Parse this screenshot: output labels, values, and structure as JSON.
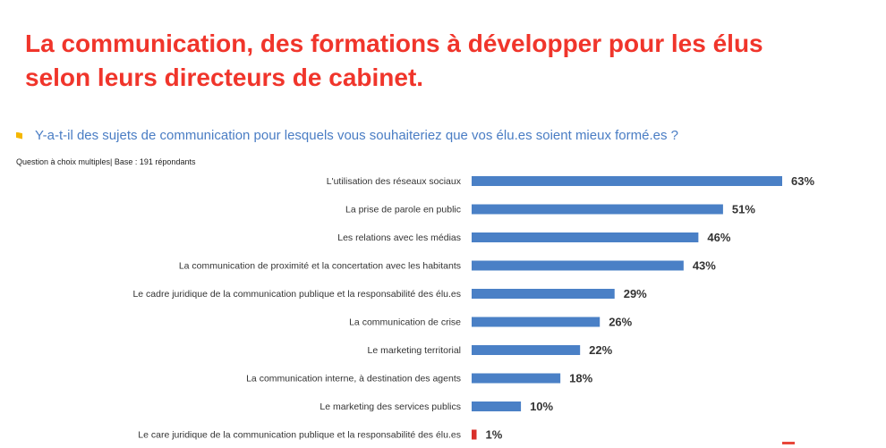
{
  "header": {
    "title_line1": "La communication, des formations à développer pour les élus",
    "title_line2": "selon leurs directeurs de cabinet."
  },
  "question": {
    "text": "Y-a-t-il des sujets de communication pour lesquels vous souhaiteriez que vos élu.es soient mieux formé.es ?",
    "note": "Question à choix multiples| Base : 191 répondants"
  },
  "chart_data": {
    "type": "bar",
    "orientation": "horizontal",
    "categories": [
      "L'utilisation des réseaux sociaux",
      "La prise de parole en public",
      "Les relations avec les médias",
      "La communication de proximité et la concertation avec les habitants",
      "Le cadre juridique de la communication publique et la responsabilité des élu.es",
      "La communication de crise",
      "Le marketing territorial",
      "La communication interne, à destination des agents",
      "Le marketing des services publics",
      "Le care juridique de la communication publique et la responsabilité des élu.es"
    ],
    "values": [
      63,
      51,
      46,
      43,
      29,
      26,
      22,
      18,
      10,
      1
    ],
    "value_labels": [
      "63%",
      "51%",
      "46%",
      "43%",
      "29%",
      "26%",
      "22%",
      "18%",
      "10%",
      "1%"
    ],
    "bar_colors": [
      "#4a80c6",
      "#4a80c6",
      "#4a80c6",
      "#4a80c6",
      "#4a80c6",
      "#4a80c6",
      "#4a80c6",
      "#4a80c6",
      "#4a80c6",
      "#d9302a"
    ],
    "xlim": [
      0,
      63
    ],
    "grid": false,
    "legend": "none"
  }
}
